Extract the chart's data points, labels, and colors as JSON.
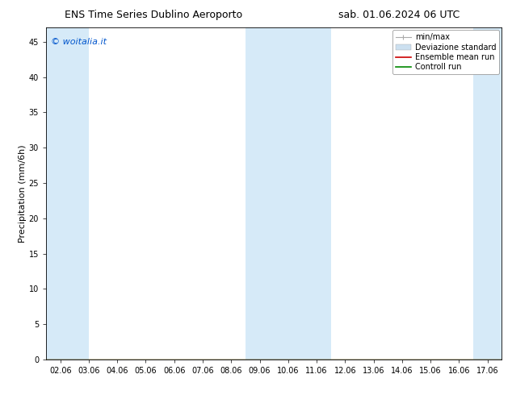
{
  "title_left": "ENS Time Series Dublino Aeroporto",
  "title_right": "sab. 01.06.2024 06 UTC",
  "ylabel": "Precipitation (mm/6h)",
  "watermark": "© woitalia.it",
  "watermark_color": "#0055cc",
  "background_color": "#ffffff",
  "plot_bg_color": "#ffffff",
  "ylim": [
    0,
    47
  ],
  "yticks": [
    0,
    5,
    10,
    15,
    20,
    25,
    30,
    35,
    40,
    45
  ],
  "x_labels": [
    "02.06",
    "03.06",
    "04.06",
    "05.06",
    "06.06",
    "07.06",
    "08.06",
    "09.06",
    "10.06",
    "11.06",
    "12.06",
    "13.06",
    "14.06",
    "15.06",
    "16.06",
    "17.06"
  ],
  "x_positions": [
    0,
    1,
    2,
    3,
    4,
    5,
    6,
    7,
    8,
    9,
    10,
    11,
    12,
    13,
    14,
    15
  ],
  "xlim": [
    -0.5,
    15.5
  ],
  "shaded_bands": [
    {
      "xmin": -0.5,
      "xmax": 1.0,
      "color": "#d6eaf8",
      "alpha": 1.0
    },
    {
      "xmin": 6.5,
      "xmax": 9.5,
      "color": "#d6eaf8",
      "alpha": 1.0
    },
    {
      "xmin": 14.5,
      "xmax": 15.5,
      "color": "#d6eaf8",
      "alpha": 1.0
    }
  ],
  "legend_minmax_color": "#aaaaaa",
  "legend_band_color": "#cce0f0",
  "legend_ens_color": "#cc0000",
  "legend_ctrl_color": "#008800",
  "title_fontsize": 9,
  "tick_fontsize": 7,
  "ylabel_fontsize": 8,
  "legend_fontsize": 7,
  "watermark_fontsize": 8
}
